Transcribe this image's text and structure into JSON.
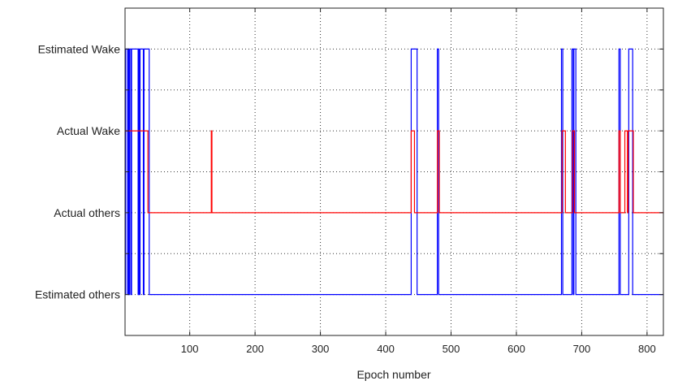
{
  "chart_data": {
    "type": "line",
    "title": "",
    "xlabel": "Epoch number",
    "ylabel": "",
    "xlim": [
      1,
      825
    ],
    "ylim": [
      -1,
      7
    ],
    "grid": true,
    "legend": null,
    "xticks": [
      100,
      200,
      300,
      400,
      500,
      600,
      700,
      800
    ],
    "yticks": [
      {
        "value": 0,
        "label": "Estimated others"
      },
      {
        "value": 1,
        "label": ""
      },
      {
        "value": 2,
        "label": "Actual others"
      },
      {
        "value": 3,
        "label": ""
      },
      {
        "value": 4,
        "label": "Actual Wake"
      },
      {
        "value": 5,
        "label": ""
      },
      {
        "value": 6,
        "label": "Estimated Wake"
      }
    ],
    "series": [
      {
        "name": "Estimated",
        "color": "#0000ff",
        "low": 0,
        "high": 6,
        "high_epochs": [
          2,
          3,
          4,
          6,
          8,
          9,
          11,
          12,
          13,
          14,
          15,
          16,
          17,
          18,
          19,
          20,
          22,
          24,
          25,
          26,
          27,
          28,
          30,
          31,
          32,
          33,
          34,
          35,
          36,
          37,
          439,
          440,
          441,
          442,
          443,
          444,
          445,
          446,
          447,
          479,
          480,
          669,
          670,
          685,
          686,
          688,
          689,
          690,
          757,
          758,
          772,
          773,
          774,
          775,
          776,
          777
        ]
      },
      {
        "name": "Actual",
        "color": "#ff0000",
        "low": 2,
        "high": 4,
        "high_epochs": [
          1,
          2,
          3,
          4,
          5,
          6,
          7,
          8,
          9,
          10,
          11,
          12,
          13,
          14,
          15,
          16,
          17,
          18,
          19,
          20,
          21,
          22,
          23,
          24,
          25,
          26,
          27,
          28,
          29,
          30,
          31,
          32,
          33,
          34,
          35,
          133,
          439,
          440,
          441,
          442,
          443,
          479,
          480,
          481,
          670,
          671,
          672,
          673,
          674,
          686,
          687,
          688,
          757,
          758,
          766,
          767,
          768,
          769,
          771,
          772,
          773,
          774,
          775,
          776,
          777,
          778
        ]
      }
    ]
  },
  "axis": {
    "x_label": "Epoch number",
    "x_tick_labels": [
      "100",
      "200",
      "300",
      "400",
      "500",
      "600",
      "700",
      "800"
    ],
    "y_tick_labels": [
      "Estimated Wake",
      "Actual Wake",
      "Actual others",
      "Estimated others"
    ]
  }
}
